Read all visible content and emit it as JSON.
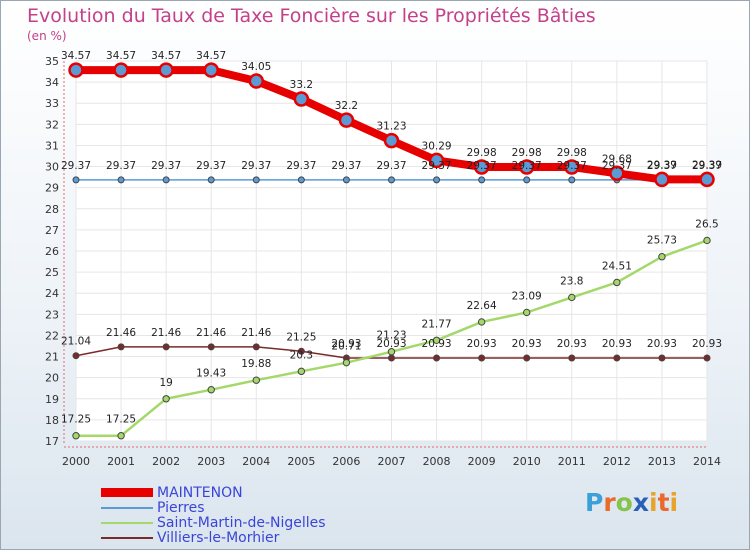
{
  "title": "Evolution du Taux de Taxe Foncière sur les Propriétés Bâties",
  "logo_text": "Proxiti",
  "chart_data": {
    "type": "line",
    "title": "Evolution du Taux de Taxe Foncière sur les Propriétés Bâties",
    "ylabel": "(en %)",
    "xlabel": "",
    "categories": [
      "2000",
      "2001",
      "2002",
      "2003",
      "2004",
      "2005",
      "2006",
      "2007",
      "2008",
      "2009",
      "2010",
      "2011",
      "2012",
      "2013",
      "2014"
    ],
    "ylim": [
      17,
      35
    ],
    "yticks": [
      17,
      18,
      19,
      20,
      21,
      22,
      23,
      24,
      25,
      26,
      27,
      28,
      29,
      30,
      31,
      32,
      33,
      34,
      35
    ],
    "grid": true,
    "legend_position": "bottom-left",
    "series": [
      {
        "name": "MAINTENON",
        "color": "#e60000",
        "values": [
          34.57,
          34.57,
          34.57,
          34.57,
          34.05,
          33.2,
          32.2,
          31.23,
          30.29,
          29.98,
          29.98,
          29.98,
          29.68,
          29.39,
          29.39
        ]
      },
      {
        "name": "Pierres",
        "color": "#5b9bd5",
        "values": [
          29.37,
          29.37,
          29.37,
          29.37,
          29.37,
          29.37,
          29.37,
          29.37,
          29.37,
          29.37,
          29.37,
          29.37,
          29.37,
          29.37,
          29.37
        ]
      },
      {
        "name": "Saint-Martin-de-Nigelles",
        "color": "#a4d86a",
        "values": [
          17.25,
          17.25,
          19,
          19.43,
          19.88,
          20.3,
          20.71,
          21.23,
          21.77,
          22.64,
          23.09,
          23.8,
          24.51,
          25.73,
          26.5
        ]
      },
      {
        "name": "Villiers-le-Morhier",
        "color": "#7a2a2a",
        "values": [
          21.04,
          21.46,
          21.46,
          21.46,
          21.46,
          21.25,
          20.93,
          20.93,
          20.93,
          20.93,
          20.93,
          20.93,
          20.93,
          20.93,
          20.93
        ]
      }
    ]
  }
}
